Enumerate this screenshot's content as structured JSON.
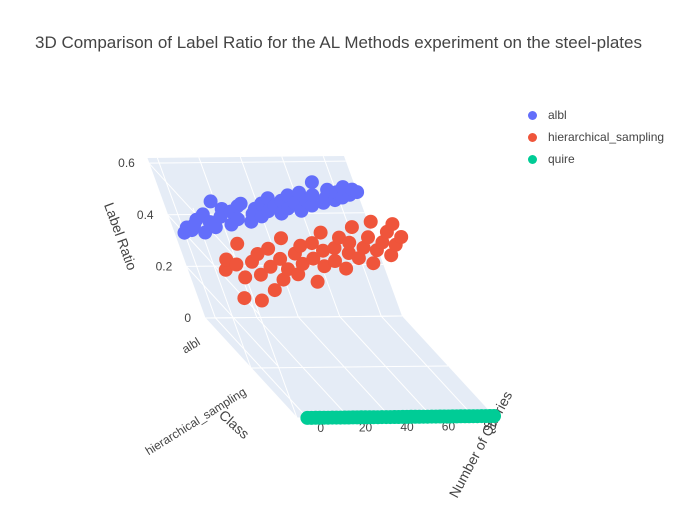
{
  "chart_data": {
    "type": "scatter",
    "title": "3D Comparison of Label Ratio for the AL Methods experiment on the steel-plates",
    "xlabel": "Number of Queries",
    "ylabel": "Class",
    "zlabel": "Label Ratio",
    "x_ticks": [
      "0",
      "20",
      "40",
      "60",
      "80"
    ],
    "y_ticks": [
      "albl",
      "hierarchical_sampling"
    ],
    "z_ticks": [
      "0",
      "0.2",
      "0.4",
      "0.6"
    ],
    "zlim": [
      0,
      0.62
    ],
    "xlim": [
      -5,
      90
    ],
    "series": [
      {
        "name": "albl",
        "color": "#636efa",
        "x": [
          0,
          2,
          4,
          6,
          8,
          10,
          12,
          14,
          16,
          18,
          20,
          22,
          24,
          26,
          28,
          30,
          32,
          34,
          36,
          38,
          40,
          42,
          44,
          46,
          48,
          50,
          52,
          54,
          56,
          58,
          60,
          62,
          64,
          66,
          68,
          70,
          72,
          74,
          76,
          78,
          80,
          82,
          84,
          86,
          88,
          90
        ],
        "y": 0,
        "z": [
          0.33,
          0.35,
          0.34,
          0.36,
          0.38,
          0.33,
          0.4,
          0.37,
          0.35,
          0.45,
          0.39,
          0.42,
          0.36,
          0.41,
          0.38,
          0.43,
          0.44,
          0.37,
          0.4,
          0.42,
          0.39,
          0.44,
          0.41,
          0.46,
          0.43,
          0.4,
          0.45,
          0.42,
          0.47,
          0.44,
          0.41,
          0.48,
          0.45,
          0.43,
          0.47,
          0.52,
          0.44,
          0.46,
          0.49,
          0.45,
          0.48,
          0.46,
          0.5,
          0.47,
          0.49,
          0.48
        ]
      },
      {
        "name": "hierarchical_sampling",
        "color": "#ef553b",
        "x": [
          0,
          2,
          4,
          6,
          8,
          10,
          12,
          14,
          16,
          18,
          20,
          22,
          24,
          26,
          28,
          30,
          32,
          34,
          36,
          38,
          40,
          42,
          44,
          46,
          48,
          50,
          52,
          54,
          56,
          58,
          60,
          62,
          64,
          66,
          68,
          70,
          72,
          74,
          76,
          78,
          80,
          82,
          84,
          86,
          88,
          90
        ],
        "y": 1,
        "z": [
          0.38,
          0.42,
          0.27,
          0.4,
          0.35,
          0.48,
          0.26,
          0.41,
          0.36,
          0.44,
          0.3,
          0.39,
          0.46,
          0.34,
          0.42,
          0.38,
          0.5,
          0.36,
          0.44,
          0.4,
          0.47,
          0.33,
          0.42,
          0.48,
          0.39,
          0.45,
          0.52,
          0.41,
          0.46,
          0.38,
          0.5,
          0.44,
          0.48,
          0.42,
          0.54,
          0.46,
          0.4,
          0.5,
          0.45,
          0.56,
          0.48,
          0.43,
          0.52,
          0.47,
          0.55,
          0.5
        ]
      },
      {
        "name": "quire",
        "color": "#00cc96",
        "x": [
          0,
          2,
          4,
          6,
          8,
          10,
          12,
          14,
          16,
          18,
          20,
          22,
          24,
          26,
          28,
          30,
          32,
          34,
          36,
          38,
          40,
          42,
          44,
          46,
          48,
          50,
          52,
          54,
          56,
          58,
          60,
          62,
          64,
          66,
          68,
          70,
          72,
          74,
          76,
          78,
          80,
          82,
          84,
          86,
          88,
          90
        ],
        "y": 2,
        "z": [
          0,
          0,
          0,
          0,
          0,
          0,
          0,
          0,
          0,
          0,
          0,
          0,
          0,
          0,
          0,
          0,
          0,
          0,
          0,
          0,
          0,
          0,
          0,
          0,
          0,
          0,
          0,
          0,
          0,
          0,
          0,
          0,
          0,
          0,
          0,
          0,
          0,
          0,
          0,
          0,
          0,
          0,
          0,
          0,
          0,
          0
        ]
      }
    ],
    "grid": true,
    "legend_position": "top-right"
  }
}
